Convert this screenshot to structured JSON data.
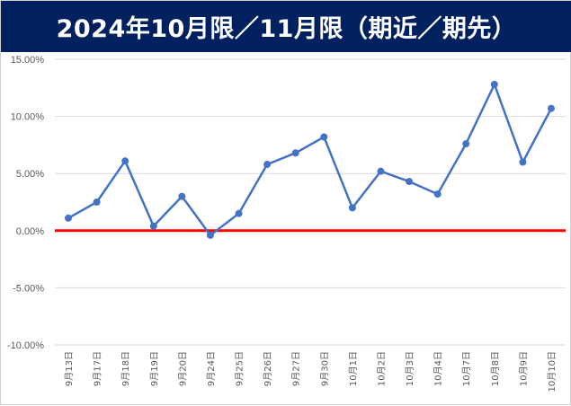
{
  "chart_data": {
    "type": "line",
    "title": "2024年10月限／11月限（期近／期先）",
    "categories": [
      "9月13日",
      "9月17日",
      "9月18日",
      "9月19日",
      "9月20日",
      "9月24日",
      "9月25日",
      "9月26日",
      "9月27日",
      "9月30日",
      "10月1日",
      "10月2日",
      "10月3日",
      "10月4日",
      "10月7日",
      "10月8日",
      "10月9日",
      "10月10日"
    ],
    "series": [
      {
        "values": [
          0.011,
          0.025,
          0.061,
          0.004,
          0.03,
          -0.004,
          0.015,
          0.058,
          0.068,
          0.082,
          0.02,
          0.052,
          0.043,
          0.032,
          0.076,
          0.128,
          0.06,
          0.107
        ]
      }
    ],
    "yticks": [
      "-10.00%",
      "-5.00%",
      "0.00%",
      "5.00%",
      "10.00%",
      "15.00%"
    ],
    "ylim": [
      -0.1,
      0.15
    ],
    "grid": true,
    "reference_line": {
      "value": 0,
      "color": "#ff0000"
    },
    "colors": {
      "series": "#4472c4",
      "title_bg": "#002060",
      "title_text": "#ffffff"
    }
  }
}
